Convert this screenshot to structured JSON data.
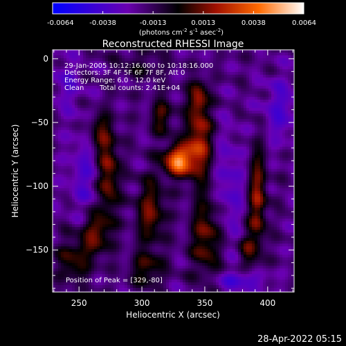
{
  "colorbar": {
    "ticks": [
      "-0.0064",
      "-0.0038",
      "-0.0013",
      "0.0013",
      "0.0038",
      "0.0064"
    ],
    "unit_main": "(photons cm",
    "unit_sup1": "-2",
    "unit_mid1": " s",
    "unit_sup2": "-1",
    "unit_mid2": " asec",
    "unit_sup3": "-2",
    "unit_end": ")",
    "colors": [
      "#0000ff",
      "#6a00b0",
      "#000000",
      "#a01000",
      "#ff6a00",
      "#ffffff"
    ]
  },
  "chart_data": {
    "type": "heatmap",
    "title": "Reconstructed RHESSI Image",
    "xlabel": "Heliocentric X (arcsec)",
    "ylabel": "Heliocentric Y (arcsec)",
    "xlim": [
      229,
      421
    ],
    "ylim": [
      -183,
      7
    ],
    "xticks": [
      250,
      300,
      350,
      400
    ],
    "yticks": [
      0,
      -50,
      -100,
      -150
    ],
    "annotations": {
      "time": "29-Jan-2005 10:12:16.000 to 10:18:16.000",
      "detectors": "Detectors: 3F 4F 5F 6F 7F 8F, Att 0",
      "energy": "Energy Range: 6.0 - 12.0 keV",
      "clean": "Clean",
      "counts": "Total counts: 2.41E+04",
      "peak": "Position of Peak = [329,-80]"
    },
    "peak": [
      329,
      -80
    ],
    "sources": [
      {
        "x": 273,
        "y": -90,
        "sx": 6,
        "sy": 24,
        "amp": 0.0036
      },
      {
        "x": 265,
        "y": -58,
        "sx": 6,
        "sy": 10,
        "amp": 0.0022
      },
      {
        "x": 263,
        "y": -137,
        "sx": 8,
        "sy": 12,
        "amp": 0.003
      },
      {
        "x": 246,
        "y": -158,
        "sx": 9,
        "sy": 12,
        "amp": 0.0024
      },
      {
        "x": 307,
        "y": -120,
        "sx": 8,
        "sy": 18,
        "amp": 0.003
      },
      {
        "x": 304,
        "y": -165,
        "sx": 9,
        "sy": 9,
        "amp": 0.0024
      },
      {
        "x": 329,
        "y": -80,
        "sx": 8,
        "sy": 8,
        "amp": 0.0064
      },
      {
        "x": 316,
        "y": -45,
        "sx": 6,
        "sy": 10,
        "amp": 0.0025
      },
      {
        "x": 345,
        "y": -65,
        "sx": 7,
        "sy": 20,
        "amp": 0.0042
      },
      {
        "x": 345,
        "y": -30,
        "sx": 5,
        "sy": 9,
        "amp": 0.003
      },
      {
        "x": 351,
        "y": -140,
        "sx": 8,
        "sy": 22,
        "amp": 0.003
      },
      {
        "x": 392,
        "y": -110,
        "sx": 5,
        "sy": 28,
        "amp": 0.0034
      },
      {
        "x": 384,
        "y": -150,
        "sx": 5,
        "sy": 10,
        "amp": 0.002
      },
      {
        "x": 300,
        "y": -5,
        "sx": 14,
        "sy": 8,
        "amp": 0.0012
      }
    ],
    "negative_sources": [
      {
        "x": 255,
        "y": -90,
        "sx": 10,
        "sy": 25,
        "amp": 0.0016
      },
      {
        "x": 370,
        "y": -100,
        "sx": 8,
        "sy": 30,
        "amp": 0.0016
      },
      {
        "x": 410,
        "y": -40,
        "sx": 10,
        "sy": 18,
        "amp": 0.0018
      },
      {
        "x": 380,
        "y": -175,
        "sx": 15,
        "sy": 6,
        "amp": 0.002
      },
      {
        "x": 240,
        "y": -20,
        "sx": 8,
        "sy": 15,
        "amp": 0.0014
      }
    ]
  },
  "footer": {
    "date": "28-Apr-2022 05:15"
  }
}
